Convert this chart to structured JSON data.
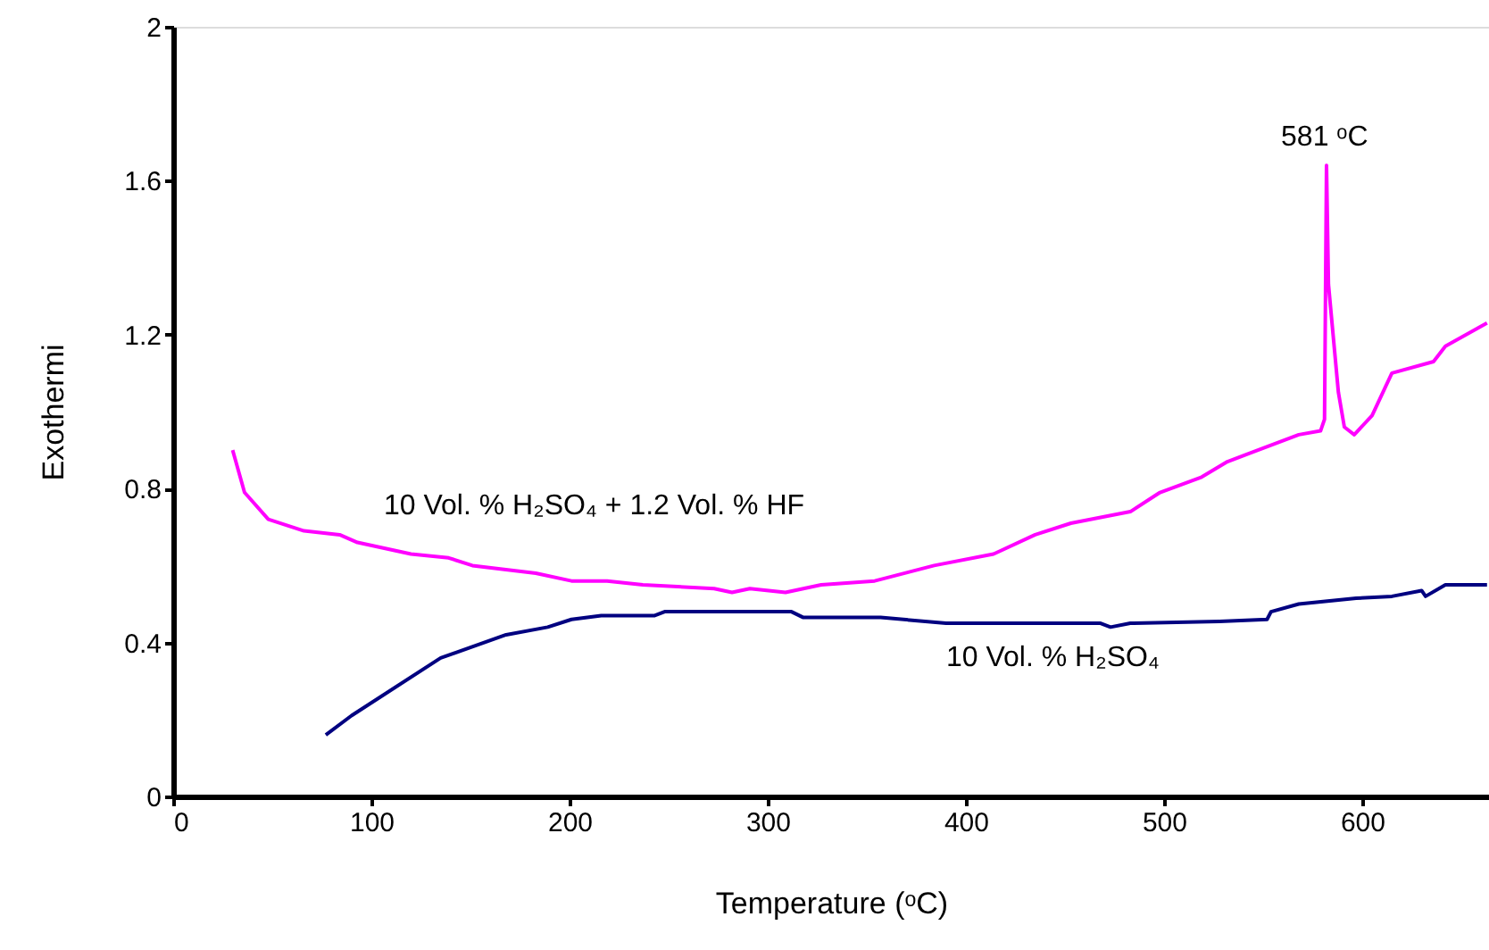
{
  "chart_data": {
    "type": "line",
    "xlabel": "Temperature (ᵒC)",
    "ylabel": "Exothermi",
    "xlim": [
      0,
      664
    ],
    "ylim": [
      0,
      2
    ],
    "xticks": [
      0,
      100,
      200,
      300,
      400,
      500,
      600
    ],
    "yticks": [
      0,
      {
        "value": 0.4,
        "label": "0.4"
      },
      {
        "value": 0.8,
        "label": "0.8"
      },
      {
        "value": 1.2,
        "label": "1.2"
      },
      {
        "value": 1.6,
        "label": "1.6"
      },
      2
    ],
    "grid": false,
    "marker": "none",
    "line_style": "solid",
    "annotations": [
      {
        "text": "581 ᵒC",
        "x": 581,
        "y": 1.64
      }
    ],
    "series": [
      {
        "name": "10 Vol. % H₂SO₄ + 1.2 Vol. % HF",
        "color": "#ff00ff",
        "x": [
          30,
          36,
          48,
          66,
          84,
          93,
          120,
          139,
          151,
          183,
          201,
          219,
          237,
          273,
          282,
          291,
          309,
          327,
          354,
          384,
          414,
          435,
          453,
          483,
          498,
          519,
          532,
          568,
          579,
          581,
          582,
          583,
          588,
          591,
          596,
          605,
          615,
          636,
          642,
          663
        ],
        "values": [
          0.9,
          0.79,
          0.72,
          0.69,
          0.68,
          0.66,
          0.63,
          0.62,
          0.6,
          0.58,
          0.56,
          0.56,
          0.55,
          0.54,
          0.53,
          0.54,
          0.53,
          0.55,
          0.56,
          0.6,
          0.63,
          0.68,
          0.71,
          0.74,
          0.79,
          0.83,
          0.87,
          0.94,
          0.95,
          0.98,
          1.64,
          1.33,
          1.05,
          0.96,
          0.94,
          0.99,
          1.1,
          1.13,
          1.17,
          1.23
        ]
      },
      {
        "name": "10 Vol. % H₂SO₄",
        "color": "#000080",
        "x": [
          77,
          90,
          135,
          168,
          189,
          201,
          216,
          243,
          248,
          312,
          318,
          357,
          390,
          468,
          473,
          483,
          528,
          552,
          554,
          568,
          597,
          615,
          630,
          632,
          642,
          663
        ],
        "values": [
          0.16,
          0.21,
          0.36,
          0.42,
          0.44,
          0.46,
          0.47,
          0.47,
          0.48,
          0.48,
          0.465,
          0.465,
          0.45,
          0.45,
          0.44,
          0.45,
          0.455,
          0.46,
          0.48,
          0.5,
          0.515,
          0.52,
          0.535,
          0.52,
          0.55,
          0.55
        ]
      }
    ]
  }
}
